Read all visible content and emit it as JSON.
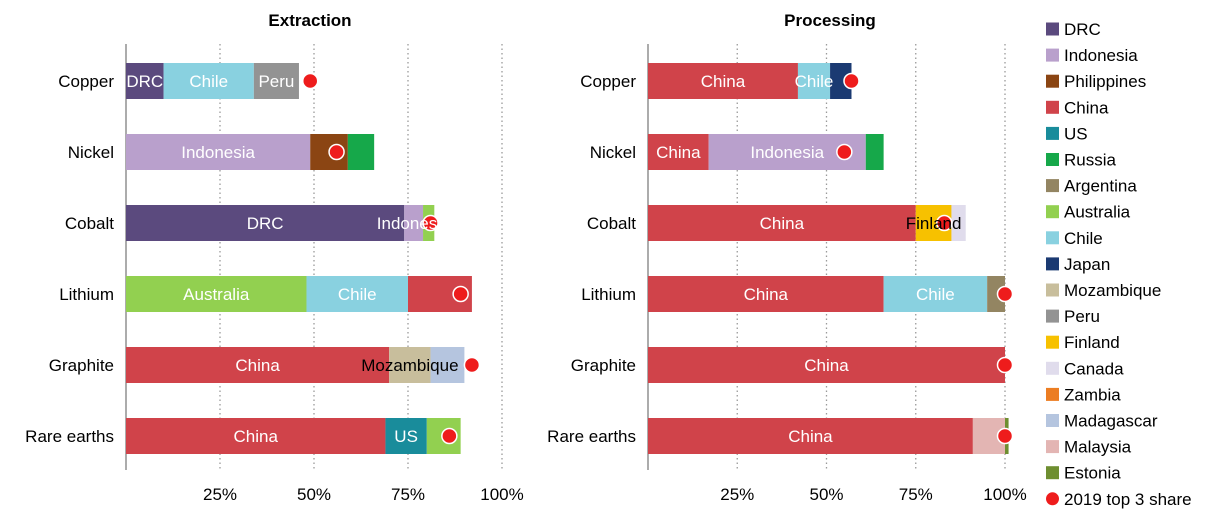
{
  "chart_data": [
    {
      "type": "bar",
      "orientation": "horizontal",
      "stacked": true,
      "title": "Extraction",
      "xlabel": "",
      "ylabel": "",
      "xlim": [
        0,
        100
      ],
      "xticks": [
        "25%",
        "50%",
        "75%",
        "100%"
      ],
      "grid": true,
      "categories": [
        "Copper",
        "Nickel",
        "Cobalt",
        "Lithium",
        "Graphite",
        "Rare earths"
      ],
      "rows": [
        {
          "segments": [
            {
              "country": "DRC",
              "value": 10,
              "label": "DRC"
            },
            {
              "country": "Chile",
              "value": 24,
              "label": "Chile"
            },
            {
              "country": "Peru",
              "value": 12,
              "label": "Peru"
            }
          ],
          "top3_2019": 49
        },
        {
          "segments": [
            {
              "country": "Indonesia",
              "value": 49,
              "label": "Indonesia"
            },
            {
              "country": "Philippines",
              "value": 10,
              "label": ""
            },
            {
              "country": "Russia",
              "value": 7,
              "label": ""
            }
          ],
          "top3_2019": 56
        },
        {
          "segments": [
            {
              "country": "DRC",
              "value": 74,
              "label": "DRC"
            },
            {
              "country": "Indonesia",
              "value": 5,
              "label": "Indonesia"
            },
            {
              "country": "Australia",
              "value": 3,
              "label": ""
            }
          ],
          "top3_2019": 81
        },
        {
          "segments": [
            {
              "country": "Australia",
              "value": 48,
              "label": "Australia"
            },
            {
              "country": "Chile",
              "value": 27,
              "label": "Chile"
            },
            {
              "country": "China",
              "value": 17,
              "label": ""
            }
          ],
          "top3_2019": 89
        },
        {
          "segments": [
            {
              "country": "China",
              "value": 70,
              "label": "China"
            },
            {
              "country": "Mozambique",
              "value": 11,
              "label": "Mozambique"
            },
            {
              "country": "Madagascar",
              "value": 9,
              "label": ""
            }
          ],
          "top3_2019": 92
        },
        {
          "segments": [
            {
              "country": "China",
              "value": 69,
              "label": "China"
            },
            {
              "country": "US",
              "value": 11,
              "label": "US"
            },
            {
              "country": "Australia",
              "value": 9,
              "label": ""
            }
          ],
          "top3_2019": 86
        }
      ]
    },
    {
      "type": "bar",
      "orientation": "horizontal",
      "stacked": true,
      "title": "Processing",
      "xlabel": "",
      "ylabel": "",
      "xlim": [
        0,
        100
      ],
      "xticks": [
        "25%",
        "50%",
        "75%",
        "100%"
      ],
      "grid": true,
      "categories": [
        "Copper",
        "Nickel",
        "Cobalt",
        "Lithium",
        "Graphite",
        "Rare earths"
      ],
      "rows": [
        {
          "segments": [
            {
              "country": "China",
              "value": 42,
              "label": "China"
            },
            {
              "country": "Chile",
              "value": 9,
              "label": "Chile"
            },
            {
              "country": "Japan",
              "value": 6,
              "label": ""
            }
          ],
          "top3_2019": 57
        },
        {
          "segments": [
            {
              "country": "China",
              "value": 17,
              "label": "China"
            },
            {
              "country": "Indonesia",
              "value": 44,
              "label": "Indonesia"
            },
            {
              "country": "Russia",
              "value": 5,
              "label": ""
            }
          ],
          "top3_2019": 55
        },
        {
          "segments": [
            {
              "country": "China",
              "value": 75,
              "label": "China"
            },
            {
              "country": "Finland",
              "value": 10,
              "label": "Finland"
            },
            {
              "country": "Canada",
              "value": 4,
              "label": ""
            }
          ],
          "top3_2019": 83
        },
        {
          "segments": [
            {
              "country": "China",
              "value": 66,
              "label": "China"
            },
            {
              "country": "Chile",
              "value": 29,
              "label": "Chile"
            },
            {
              "country": "Argentina",
              "value": 5,
              "label": ""
            }
          ],
          "top3_2019": 100
        },
        {
          "segments": [
            {
              "country": "China",
              "value": 100,
              "label": "China"
            }
          ],
          "top3_2019": 100
        },
        {
          "segments": [
            {
              "country": "China",
              "value": 91,
              "label": "China"
            },
            {
              "country": "Malaysia",
              "value": 9,
              "label": ""
            },
            {
              "country": "Estonia",
              "value": 1,
              "label": ""
            }
          ],
          "top3_2019": 100
        }
      ]
    }
  ],
  "legend": {
    "placement": "right",
    "items": [
      {
        "label": "DRC",
        "color": "#5b4a7e"
      },
      {
        "label": "Indonesia",
        "color": "#b9a0cc"
      },
      {
        "label": "Philippines",
        "color": "#8b4513"
      },
      {
        "label": "China",
        "color": "#d0434a"
      },
      {
        "label": "US",
        "color": "#198c9b"
      },
      {
        "label": "Russia",
        "color": "#16a84a"
      },
      {
        "label": "Argentina",
        "color": "#938562"
      },
      {
        "label": "Australia",
        "color": "#92d050"
      },
      {
        "label": "Chile",
        "color": "#89d1e0"
      },
      {
        "label": "Japan",
        "color": "#1b3a72"
      },
      {
        "label": "Mozambique",
        "color": "#c8be9c"
      },
      {
        "label": "Peru",
        "color": "#939393"
      },
      {
        "label": "Finland",
        "color": "#f7c100"
      },
      {
        "label": "Canada",
        "color": "#e0dcec"
      },
      {
        "label": "Zambia",
        "color": "#ec7d22"
      },
      {
        "label": "Madagascar",
        "color": "#b5c5df"
      },
      {
        "label": "Malaysia",
        "color": "#e3b5b3"
      },
      {
        "label": "Estonia",
        "color": "#6e8e30"
      }
    ],
    "marker": {
      "label": "2019 top 3 share",
      "color": "#ee1c1c"
    }
  },
  "style": {
    "dark_label_countries": [
      "Mozambique",
      "Finland"
    ],
    "inside_text_color": "#ffffff",
    "dark_text_color": "#000000",
    "axis_color": "#7f7f7f",
    "grid_color": "#9a9a9a"
  }
}
